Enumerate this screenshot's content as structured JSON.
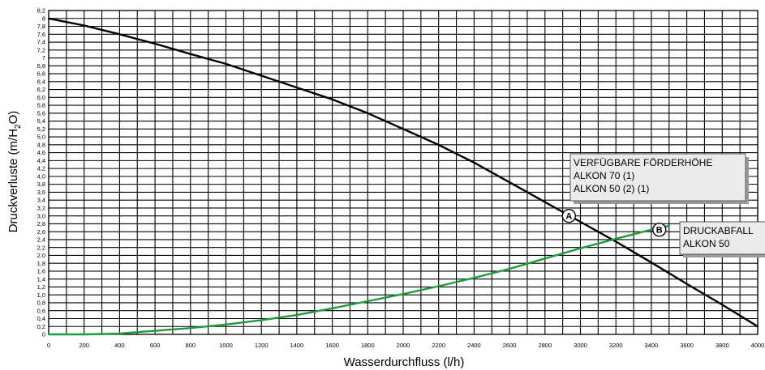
{
  "chart_data": {
    "type": "line",
    "xlabel": "Wasserdurchfluss (l/h)",
    "ylabel_main": "Druckverluste (m/H",
    "ylabel_sub": "2",
    "ylabel_end": "O)",
    "xlim": [
      0,
      4000
    ],
    "ylim": [
      0,
      8.2
    ],
    "grid": true,
    "x_ticks": [
      0,
      200,
      400,
      600,
      800,
      1000,
      1200,
      1400,
      1600,
      1800,
      2000,
      2200,
      2400,
      2600,
      2800,
      3000,
      3200,
      3400,
      3600,
      3800,
      4000
    ],
    "x_tick_labels": [
      "0",
      "200",
      "400",
      "600",
      "800",
      "1000",
      "1200",
      "1400",
      "1600",
      "1800",
      "2000",
      "2200",
      "2400",
      "2600",
      "2800",
      "3000",
      "3200",
      "3400",
      "3600",
      "3800",
      "4000"
    ],
    "y_ticks": [
      0,
      0.2,
      0.4,
      0.6,
      0.8,
      1.0,
      1.2,
      1.4,
      1.6,
      1.8,
      2.0,
      2.2,
      2.4,
      2.6,
      2.8,
      3.0,
      3.2,
      3.4,
      3.6,
      3.8,
      4.0,
      4.2,
      4.4,
      4.6,
      4.8,
      5.0,
      5.2,
      5.4,
      5.6,
      5.8,
      6.0,
      6.2,
      6.4,
      6.6,
      6.8,
      7.0,
      7.2,
      7.4,
      7.6,
      7.8,
      8.0,
      8.2
    ],
    "y_tick_labels": [
      "0",
      "0,2",
      "0,4",
      "0,6",
      "0,8",
      "1,0",
      "1,2",
      "1,4",
      "1,6",
      "1,8",
      "2,0",
      "2,2",
      "2,4",
      "2,6",
      "2,8",
      "3,0",
      "3,2",
      "3,4",
      "3,6",
      "3,8",
      "4,0",
      "4,2",
      "4,4",
      "4,6",
      "4,8",
      "5,0",
      "5,2",
      "5,4",
      "5,6",
      "5,8",
      "6,0",
      "6,2",
      "6,4",
      "6,6",
      "6,8",
      "7",
      "7,2",
      "7,4",
      "7,6",
      "7,8",
      "8",
      "8,2"
    ],
    "series": [
      {
        "marker": "A",
        "color": "#000000",
        "x": [
          0,
          200,
          400,
          600,
          800,
          1000,
          1200,
          1400,
          1600,
          1800,
          2000,
          2200,
          2400,
          2600,
          2800,
          3000,
          3200,
          3400,
          3600,
          3800,
          4000
        ],
        "y": [
          8.0,
          7.82,
          7.6,
          7.36,
          7.1,
          6.85,
          6.55,
          6.25,
          5.95,
          5.6,
          5.2,
          4.8,
          4.35,
          3.85,
          3.35,
          2.85,
          2.35,
          1.82,
          1.28,
          0.75,
          0.2
        ]
      },
      {
        "marker": "B",
        "color": "#1f9a3e",
        "x": [
          0,
          200,
          400,
          600,
          800,
          1000,
          1200,
          1400,
          1600,
          1800,
          2000,
          2200,
          2400,
          2600,
          2800,
          3000,
          3200,
          3400,
          3500
        ],
        "y": [
          0.0,
          0.0,
          0.02,
          0.09,
          0.16,
          0.25,
          0.36,
          0.49,
          0.66,
          0.84,
          1.02,
          1.22,
          1.43,
          1.66,
          1.92,
          2.18,
          2.42,
          2.65,
          2.75
        ]
      }
    ],
    "markers": [
      {
        "label": "A",
        "x": 2935,
        "y": 3.0
      },
      {
        "label": "B",
        "x": 3445,
        "y": 2.65
      }
    ],
    "annotations": [
      {
        "lines": [
          "VERFÜGBARE FÖRDERHÖHE",
          "ALKON 70 (1)",
          "ALKON 50 (2) (1)"
        ]
      },
      {
        "lines": [
          "DRUCKABFALL",
          "ALKON 50"
        ]
      }
    ]
  }
}
